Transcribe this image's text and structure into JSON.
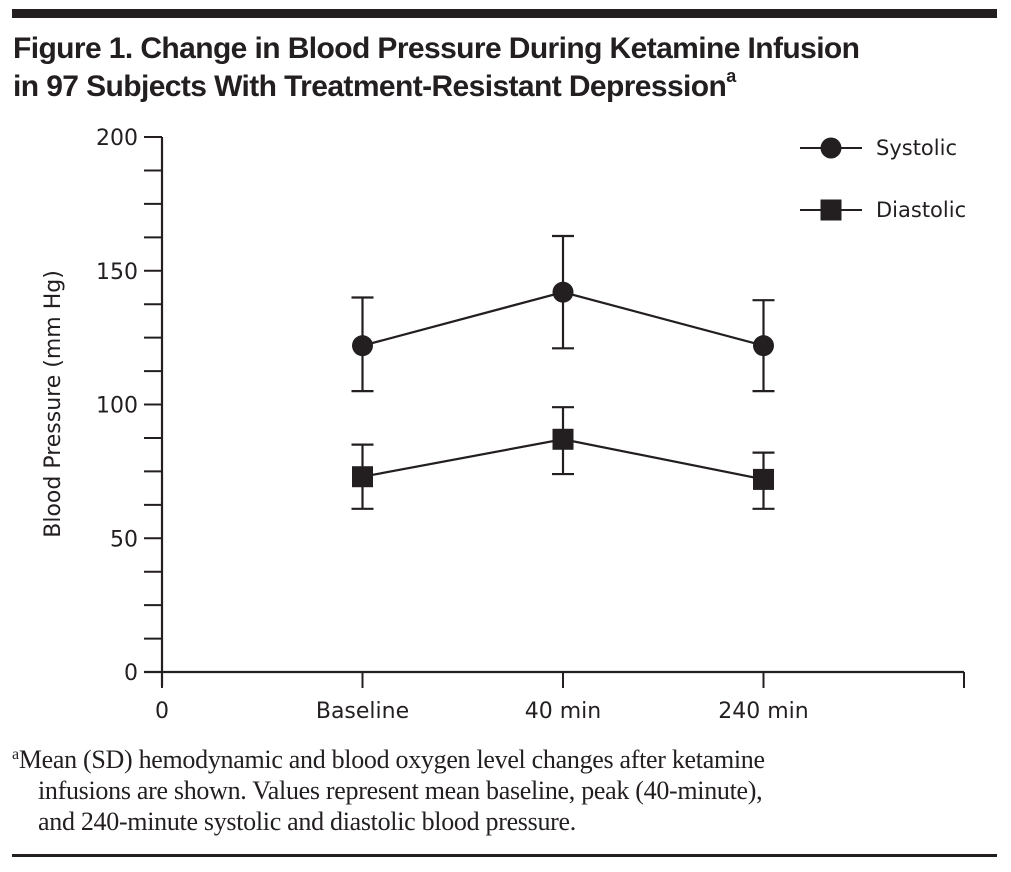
{
  "figure": {
    "title_line1": "Figure 1. Change in Blood Pressure During Ketamine Infusion",
    "title_line2": "in 97 Subjects With Treatment-Resistant Depression",
    "title_superscript": "a",
    "footnote_marker": "a",
    "footnote_lines": [
      "Mean (SD) hemodynamic and blood oxygen level changes after ketamine",
      "infusions are shown. Values represent mean baseline, peak (40-minute),",
      "and 240-minute systolic and diastolic blood pressure."
    ],
    "ink_color": "#231f20"
  },
  "chart_data": {
    "type": "line",
    "title": "Change in Blood Pressure During Ketamine Infusion in 97 Subjects With Treatment-Resistant Depression",
    "xlabel": "",
    "ylabel": "Blood Pressure (mm Hg)",
    "categories": [
      "Baseline",
      "40 min",
      "240 min"
    ],
    "x_tick_labels": [
      "0",
      "Baseline",
      "40 min",
      "240 min",
      ""
    ],
    "y_tick_labels": [
      "0",
      "50",
      "100",
      "150",
      "200"
    ],
    "y_major_ticks": [
      0,
      50,
      100,
      150,
      200
    ],
    "y_minor_step": 12.5,
    "ylim": [
      0,
      200
    ],
    "grid": false,
    "legend_position": "top-right",
    "series": [
      {
        "name": "Systolic",
        "marker": "circle",
        "values": [
          122,
          142,
          122
        ],
        "error_low": [
          105,
          121,
          105
        ],
        "error_high": [
          140,
          163,
          139
        ]
      },
      {
        "name": "Diastolic",
        "marker": "square",
        "values": [
          73,
          87,
          72
        ],
        "error_low": [
          61,
          74,
          61
        ],
        "error_high": [
          85,
          99,
          82
        ]
      }
    ]
  }
}
